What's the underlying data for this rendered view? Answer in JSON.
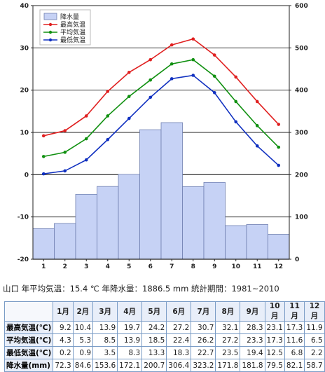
{
  "chart_data": {
    "type": "bar+line",
    "categories": [
      "1",
      "2",
      "3",
      "4",
      "5",
      "6",
      "7",
      "8",
      "9",
      "10",
      "11",
      "12"
    ],
    "left_axis": {
      "ylim": [
        -20,
        40
      ],
      "ticks": [
        "40",
        "30",
        "20",
        "10",
        "0",
        "-10",
        "-20"
      ]
    },
    "right_axis": {
      "ylim": [
        0,
        600
      ],
      "ticks": [
        "600",
        "500",
        "400",
        "300",
        "200",
        "100",
        "0"
      ]
    },
    "legend": {
      "placement": "top-left"
    },
    "series": [
      {
        "name": "降水量",
        "type": "bar",
        "axis": "right",
        "color": "#c6d2f5",
        "values": [
          72.3,
          84.6,
          153.6,
          172.1,
          200.7,
          306.4,
          323.2,
          171.8,
          181.8,
          79.5,
          82.1,
          58.7
        ]
      },
      {
        "name": "最高気温",
        "type": "line",
        "axis": "left",
        "color": "#e02020",
        "values": [
          9.2,
          10.4,
          13.9,
          19.7,
          24.2,
          27.2,
          30.7,
          32.1,
          28.3,
          23.1,
          17.3,
          11.9
        ]
      },
      {
        "name": "平均気温",
        "type": "line",
        "axis": "left",
        "color": "#109010",
        "values": [
          4.3,
          5.3,
          8.5,
          13.9,
          18.5,
          22.4,
          26.2,
          27.2,
          23.3,
          17.3,
          11.6,
          6.5
        ]
      },
      {
        "name": "最低気温",
        "type": "line",
        "axis": "left",
        "color": "#1030c0",
        "values": [
          0.2,
          0.9,
          3.5,
          8.3,
          13.3,
          18.3,
          22.7,
          23.5,
          19.4,
          12.5,
          6.8,
          2.2
        ]
      }
    ]
  },
  "summary": {
    "location": "山口",
    "avg_temp_label": "年平均気温：",
    "avg_temp_value": "15.4 ℃",
    "precip_label": "年降水量：",
    "precip_value": "1886.5 mm",
    "period_label": "統計期間：",
    "period_value": "1981~2010"
  },
  "table": {
    "months": [
      "1月",
      "2月",
      "3月",
      "4月",
      "5月",
      "6月",
      "7月",
      "8月",
      "9月",
      "10月",
      "11月",
      "12月"
    ],
    "rows": [
      {
        "label": "最高気温(℃)",
        "values": [
          "9.2",
          "10.4",
          "13.9",
          "19.7",
          "24.2",
          "27.2",
          "30.7",
          "32.1",
          "28.3",
          "23.1",
          "17.3",
          "11.9"
        ]
      },
      {
        "label": "平均気温(℃)",
        "values": [
          "4.3",
          "5.3",
          "8.5",
          "13.9",
          "18.5",
          "22.4",
          "26.2",
          "27.2",
          "23.3",
          "17.3",
          "11.6",
          "6.5"
        ]
      },
      {
        "label": "最低気温(℃)",
        "values": [
          "0.2",
          "0.9",
          "3.5",
          "8.3",
          "13.3",
          "18.3",
          "22.7",
          "23.5",
          "19.4",
          "12.5",
          "6.8",
          "2.2"
        ]
      },
      {
        "label": "降水量(mm)",
        "values": [
          "72.3",
          "84.6",
          "153.6",
          "172.1",
          "200.7",
          "306.4",
          "323.2",
          "171.8",
          "181.8",
          "79.5",
          "82.1",
          "58.7"
        ]
      }
    ]
  }
}
